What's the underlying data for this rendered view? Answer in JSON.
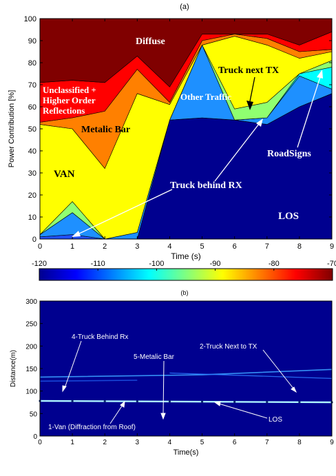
{
  "chart_data": [
    {
      "type": "area",
      "title": "(a)",
      "xlabel": "Time (s)",
      "ylabel": "Power Contribution [%]",
      "stacked": true,
      "xlim": [
        0,
        9
      ],
      "ylim": [
        0,
        100
      ],
      "x": [
        0,
        1,
        2,
        3,
        4,
        5,
        6,
        7,
        8,
        9
      ],
      "x_ticks": [
        "0",
        "1",
        "2",
        "3",
        "4",
        "5",
        "6",
        "7",
        "8",
        "9"
      ],
      "y_ticks": [
        "0",
        "10",
        "20",
        "30",
        "40",
        "50",
        "60",
        "70",
        "80",
        "90",
        "100"
      ],
      "series": [
        {
          "name": "LOS",
          "color": "#00008f",
          "values": [
            0,
            0,
            0,
            0,
            54,
            55,
            54,
            52,
            60,
            66
          ]
        },
        {
          "name": "",
          "color": "#2050ff",
          "values": [
            1,
            2,
            0,
            0,
            0,
            0,
            0,
            0,
            0,
            0
          ]
        },
        {
          "name": "",
          "color": "#1e90ff",
          "values": [
            1,
            10,
            0,
            3,
            0,
            33,
            0,
            3,
            14,
            2
          ]
        },
        {
          "name": "",
          "color": "#00ffff",
          "values": [
            0,
            0,
            0,
            0,
            0,
            0,
            0,
            0,
            1,
            10
          ]
        },
        {
          "name": "",
          "color": "#90ff70",
          "values": [
            0,
            5,
            0,
            0,
            0,
            0,
            5,
            7,
            0,
            3
          ]
        },
        {
          "name": "",
          "color": "#ffff00",
          "values": [
            50,
            33,
            32,
            63,
            7,
            0,
            33,
            26,
            7,
            4
          ]
        },
        {
          "name": "",
          "color": "#ff8000",
          "values": [
            1,
            5,
            26,
            11,
            1,
            2,
            1,
            3,
            3,
            1
          ]
        },
        {
          "name": "",
          "color": "#ff0000",
          "values": [
            18,
            17,
            13,
            6,
            7,
            3,
            0,
            2,
            3,
            8
          ]
        },
        {
          "name": "",
          "color": "#800000",
          "values": [
            29,
            28,
            29,
            17,
            31,
            7,
            7,
            7,
            12,
            6
          ]
        }
      ],
      "annotations": [
        {
          "text": "Diffuse",
          "color": "#ffffff"
        },
        {
          "text": "Unclassified +",
          "color": "#ffffff"
        },
        {
          "text": "Higher Order",
          "color": "#ffffff"
        },
        {
          "text": "Reflections",
          "color": "#ffffff"
        },
        {
          "text": "Metalic Bar",
          "color": "#000000"
        },
        {
          "text": "VAN",
          "color": "#000000"
        },
        {
          "text": "Other Traffic",
          "color": "#ffffff"
        },
        {
          "text": "Truck next TX",
          "color": "#000000"
        },
        {
          "text": "Truck behind RX",
          "color": "#ffffff"
        },
        {
          "text": "RoadSigns",
          "color": "#ffffff"
        },
        {
          "text": "LOS",
          "color": "#ffffff"
        }
      ]
    },
    {
      "type": "heatmap",
      "title": "(b)",
      "xlabel": "Time(s)",
      "ylabel": "Distance(m)",
      "xlim": [
        0,
        9
      ],
      "ylim": [
        0,
        300
      ],
      "x_ticks": [
        "0",
        "1",
        "2",
        "3",
        "4",
        "5",
        "6",
        "7",
        "8",
        "9"
      ],
      "y_ticks": [
        "0",
        "50",
        "100",
        "150",
        "200",
        "250",
        "300"
      ],
      "colorbar": {
        "range": [
          -120,
          -70
        ],
        "ticks": [
          "-120",
          "-110",
          "-100",
          "-90",
          "-80",
          "-70"
        ]
      },
      "traces": [
        {
          "label": "LOS",
          "points": [
            [
              0,
              78
            ],
            [
              9,
              75
            ]
          ]
        },
        {
          "label": "2-Truck Next to TX",
          "points": [
            [
              0,
              131
            ],
            [
              5,
              136
            ],
            [
              9,
              148
            ]
          ]
        },
        {
          "label": "",
          "points": [
            [
              4,
              140
            ],
            [
              9,
              128
            ]
          ]
        },
        {
          "label": "4-Truck Behind Rx",
          "points": [
            [
              0,
              122
            ],
            [
              3,
              124
            ]
          ]
        }
      ],
      "annotations": [
        {
          "text": "4-Truck Behind Rx"
        },
        {
          "text": "5-Metalic Bar"
        },
        {
          "text": "2-Truck Next to TX"
        },
        {
          "text": "LOS"
        },
        {
          "text": "1-Van (Diffraction from Roof)"
        }
      ]
    }
  ]
}
